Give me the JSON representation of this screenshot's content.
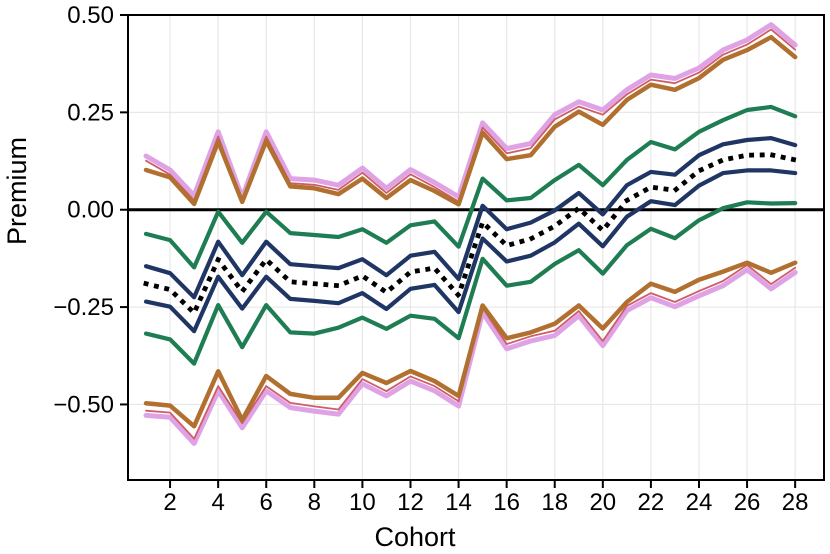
{
  "chart_data": {
    "type": "line",
    "title": "",
    "xlabel": "Cohort",
    "ylabel": "Premium",
    "x": [
      1,
      2,
      3,
      4,
      5,
      6,
      7,
      8,
      9,
      10,
      11,
      12,
      13,
      14,
      15,
      16,
      17,
      18,
      19,
      20,
      21,
      22,
      23,
      24,
      25,
      26,
      27,
      28
    ],
    "xlim": [
      0.25,
      29.2
    ],
    "ylim": [
      -0.694,
      0.5
    ],
    "x_ticks": [
      2,
      4,
      6,
      8,
      10,
      12,
      14,
      16,
      18,
      20,
      22,
      24,
      26,
      28
    ],
    "x_tick_labels": [
      "2",
      "4",
      "6",
      "8",
      "10",
      "12",
      "14",
      "16",
      "18",
      "20",
      "22",
      "24",
      "26",
      "28"
    ],
    "y_ticks": [
      0.5,
      0.25,
      0.0,
      -0.25,
      -0.5
    ],
    "y_tick_labels": [
      "0.50",
      "0.25",
      "0.00",
      "−0.25",
      "−0.50"
    ],
    "grid": true,
    "legend_position": "none",
    "hline": {
      "y": 0.0,
      "color": "#000000",
      "width": 3
    },
    "series": [
      {
        "name": "upper-violet",
        "color": "#dfa2e5",
        "width": 5,
        "values": [
          0.138,
          0.102,
          0.036,
          0.2,
          0.032,
          0.2,
          0.08,
          0.076,
          0.063,
          0.107,
          0.055,
          0.103,
          0.07,
          0.033,
          0.223,
          0.157,
          0.17,
          0.244,
          0.277,
          0.256,
          0.308,
          0.346,
          0.337,
          0.364,
          0.41,
          0.436,
          0.475,
          0.423
        ]
      },
      {
        "name": "upper-crimson-thin",
        "color": "#cf5d68",
        "width": 1.8,
        "values": [
          0.126,
          0.09,
          0.024,
          0.188,
          0.02,
          0.188,
          0.068,
          0.064,
          0.051,
          0.095,
          0.043,
          0.091,
          0.058,
          0.021,
          0.211,
          0.145,
          0.158,
          0.232,
          0.265,
          0.244,
          0.296,
          0.334,
          0.325,
          0.352,
          0.398,
          0.424,
          0.463,
          0.411
        ]
      },
      {
        "name": "lower-violet",
        "color": "#dfa2e5",
        "width": 5,
        "values": [
          -0.528,
          -0.533,
          -0.6,
          -0.465,
          -0.56,
          -0.465,
          -0.508,
          -0.517,
          -0.525,
          -0.447,
          -0.478,
          -0.44,
          -0.465,
          -0.504,
          -0.264,
          -0.357,
          -0.337,
          -0.323,
          -0.272,
          -0.349,
          -0.259,
          -0.226,
          -0.249,
          -0.221,
          -0.195,
          -0.154,
          -0.203,
          -0.161
        ]
      },
      {
        "name": "lower-crimson-thin",
        "color": "#cf5d68",
        "width": 1.8,
        "values": [
          -0.516,
          -0.521,
          -0.588,
          -0.453,
          -0.548,
          -0.453,
          -0.496,
          -0.505,
          -0.513,
          -0.435,
          -0.466,
          -0.428,
          -0.453,
          -0.492,
          -0.252,
          -0.345,
          -0.325,
          -0.311,
          -0.26,
          -0.337,
          -0.247,
          -0.214,
          -0.237,
          -0.209,
          -0.183,
          -0.142,
          -0.191,
          -0.149
        ]
      },
      {
        "name": "upper-brown",
        "color": "#b1702f",
        "width": 4.5,
        "values": [
          0.102,
          0.083,
          0.015,
          0.175,
          0.02,
          0.177,
          0.06,
          0.055,
          0.04,
          0.08,
          0.03,
          0.076,
          0.048,
          0.014,
          0.198,
          0.13,
          0.14,
          0.213,
          0.252,
          0.218,
          0.282,
          0.321,
          0.308,
          0.338,
          0.385,
          0.41,
          0.443,
          0.392
        ]
      },
      {
        "name": "lower-brown",
        "color": "#b1702f",
        "width": 4.5,
        "values": [
          -0.497,
          -0.503,
          -0.556,
          -0.415,
          -0.54,
          -0.427,
          -0.473,
          -0.483,
          -0.483,
          -0.419,
          -0.445,
          -0.414,
          -0.44,
          -0.478,
          -0.246,
          -0.33,
          -0.315,
          -0.293,
          -0.246,
          -0.305,
          -0.237,
          -0.19,
          -0.211,
          -0.18,
          -0.159,
          -0.136,
          -0.162,
          -0.136
        ]
      },
      {
        "name": "upper-green",
        "color": "#1e7d52",
        "width": 4.2,
        "values": [
          -0.062,
          -0.078,
          -0.148,
          -0.005,
          -0.085,
          -0.005,
          -0.06,
          -0.065,
          -0.07,
          -0.05,
          -0.085,
          -0.04,
          -0.03,
          -0.095,
          0.08,
          0.024,
          0.03,
          0.076,
          0.115,
          0.063,
          0.128,
          0.174,
          0.155,
          0.2,
          0.23,
          0.256,
          0.264,
          0.24
        ]
      },
      {
        "name": "lower-green",
        "color": "#1e7d52",
        "width": 4.2,
        "values": [
          -0.318,
          -0.333,
          -0.395,
          -0.245,
          -0.353,
          -0.245,
          -0.315,
          -0.318,
          -0.303,
          -0.277,
          -0.306,
          -0.272,
          -0.28,
          -0.33,
          -0.126,
          -0.195,
          -0.185,
          -0.139,
          -0.104,
          -0.164,
          -0.091,
          -0.049,
          -0.073,
          -0.027,
          0.004,
          0.019,
          0.016,
          0.017
        ]
      },
      {
        "name": "upper-navy",
        "color": "#1f3564",
        "width": 4.2,
        "values": [
          -0.145,
          -0.163,
          -0.225,
          -0.082,
          -0.168,
          -0.082,
          -0.14,
          -0.145,
          -0.15,
          -0.127,
          -0.168,
          -0.118,
          -0.108,
          -0.178,
          0.01,
          -0.05,
          -0.033,
          -0.002,
          0.043,
          -0.012,
          0.063,
          0.097,
          0.09,
          0.14,
          0.168,
          0.179,
          0.184,
          0.166
        ]
      },
      {
        "name": "lower-navy",
        "color": "#1f3564",
        "width": 4.2,
        "values": [
          -0.236,
          -0.249,
          -0.312,
          -0.172,
          -0.254,
          -0.172,
          -0.229,
          -0.234,
          -0.24,
          -0.214,
          -0.255,
          -0.203,
          -0.193,
          -0.263,
          -0.074,
          -0.133,
          -0.118,
          -0.084,
          -0.036,
          -0.094,
          -0.018,
          0.022,
          0.012,
          0.062,
          0.094,
          0.101,
          0.101,
          0.094
        ]
      },
      {
        "name": "median-dotted-black",
        "color": "#000000",
        "width": 4.8,
        "dash": "dotted",
        "values": [
          -0.19,
          -0.205,
          -0.265,
          -0.128,
          -0.21,
          -0.128,
          -0.185,
          -0.19,
          -0.195,
          -0.17,
          -0.212,
          -0.16,
          -0.15,
          -0.22,
          -0.032,
          -0.092,
          -0.075,
          -0.042,
          0.004,
          -0.053,
          0.024,
          0.058,
          0.05,
          0.1,
          0.128,
          0.14,
          0.141,
          0.128
        ]
      }
    ]
  },
  "style": {
    "grid_color": "#e8e8e8",
    "frame_color": "#000000",
    "tick_color": "#000000",
    "background": "#ffffff"
  }
}
